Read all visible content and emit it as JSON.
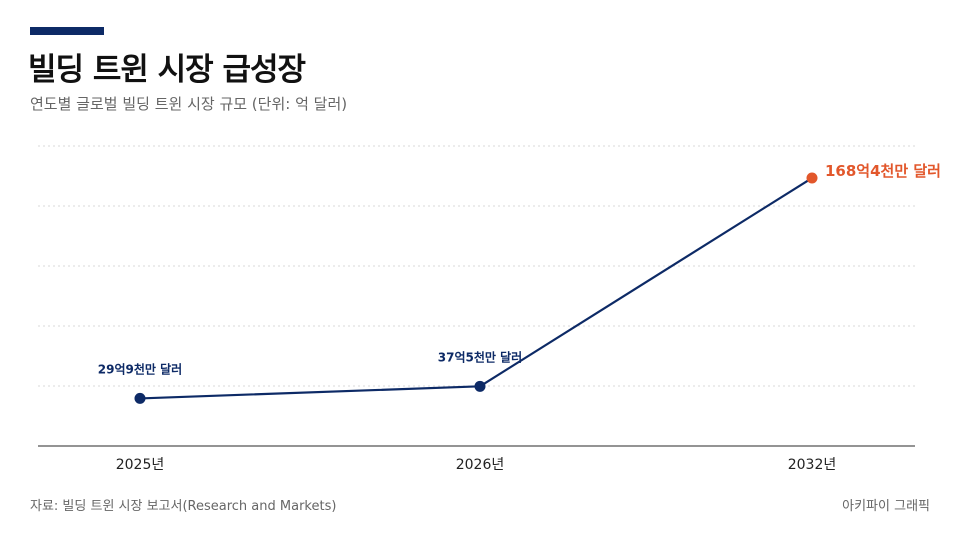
{
  "header": {
    "title": "빌딩 트윈 시장 급성장",
    "subtitle": "연도별 글로벌 빌딩 트윈 시장 규모 (단위: 억 달러)"
  },
  "footer": {
    "source": "자료: 빌딩 트윈 시장 보고서(Research and Markets)",
    "credit": "아키파이 그래픽"
  },
  "colors": {
    "accent": "#0d2a66",
    "line": "#0d2a66",
    "highlight": "#e2572b",
    "grid": "#d8d8d8",
    "axis": "#555555"
  },
  "chart_data": {
    "type": "line",
    "categories": [
      "2025년",
      "2026년",
      "2032년"
    ],
    "values": [
      29.9,
      37.5,
      168.4
    ],
    "data_labels": [
      "29억9천만 달러",
      "37억5천만 달러",
      "168억4천만 달러"
    ],
    "highlight_index": 2,
    "ylim": [
      0,
      186
    ],
    "grid": true,
    "y_ticks_visible": false
  }
}
